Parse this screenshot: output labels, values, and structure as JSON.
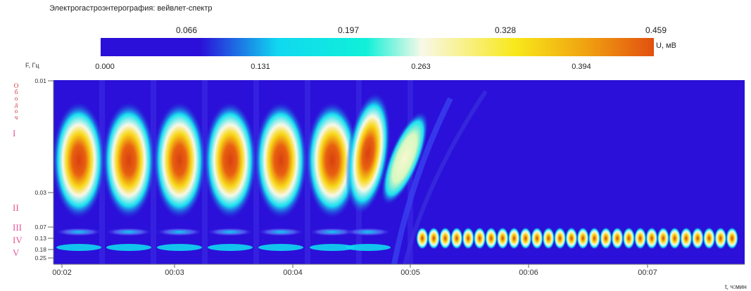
{
  "title": "Электрогастроэнтерография: вейвлет-спектр",
  "colorbar": {
    "unit_label": "U, мВ",
    "top_ticks": [
      "0.066",
      "0.197",
      "0.328",
      "0.459"
    ],
    "bottom_ticks": [
      "0.000",
      "0.131",
      "0.263",
      "0.394"
    ]
  },
  "chart_data": {
    "type": "heatmap",
    "title": "Электрогастроэнтерография: вейвлет-спектр",
    "colorbar_label": "U, мВ",
    "value_range": [
      0.0,
      0.459
    ],
    "y_label": "F, Гц",
    "y_ticks": [
      "0.01",
      "0.03",
      "0.07",
      "0.13",
      "0.18",
      "0.25"
    ],
    "x_label": "t, ч:мин",
    "x_ticks": [
      "00:02",
      "00:03",
      "00:04",
      "00:05",
      "00:06",
      "00:07"
    ],
    "zones": [
      "Ободочная",
      "I",
      "II",
      "III",
      "IV",
      "V"
    ],
    "features": [
      {
        "band": "I",
        "f_hz": 0.02,
        "description": "periodic peaks ~0.45 mV, period ~0.25 min, 00:02 to 00:05"
      },
      {
        "band": "IV-V",
        "f_hz": 0.15,
        "description": "fine periodic activity after 00:05"
      }
    ]
  },
  "axis": {
    "y_title": "F, Гц",
    "x_title": "t, ч:мин",
    "y_ticks": [
      "0.01",
      "0.03",
      "0.07",
      "0.13",
      "0.18",
      "0.25"
    ],
    "x_ticks": [
      "00:02",
      "00:03",
      "00:04",
      "00:05",
      "00:06",
      "00:07"
    ]
  },
  "zones": {
    "colon": "Ободочная",
    "z1": "I",
    "z2": "II",
    "z3": "III",
    "z4": "IV",
    "z5": "V"
  },
  "colors": {
    "low": "#2a10d8",
    "cyan": "#10d8f0",
    "white": "#f8f8e8",
    "yellow": "#f8e81a",
    "high": "#e25010"
  }
}
